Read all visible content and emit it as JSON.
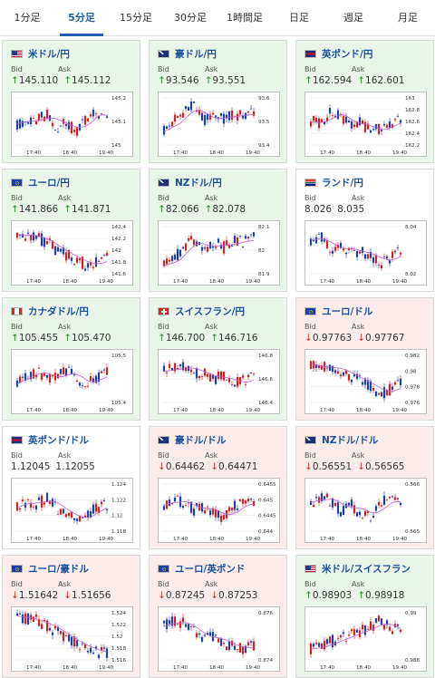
{
  "tabs": [
    "1分足",
    "5分足",
    "15分足",
    "30分足",
    "1時間足",
    "日足",
    "週足",
    "月足"
  ],
  "active_tab": 1,
  "labels": {
    "bid": "Bid",
    "ask": "Ask"
  },
  "x_ticks": [
    "17:40",
    "18:40",
    "19:40"
  ],
  "colors": {
    "up_bg": "#eaf5ea",
    "down_bg": "#fbecec",
    "flat_bg": "#ffffff",
    "up_arrow": "#2a8a2a",
    "down_arrow": "#c83232",
    "candle_up": "#d62020",
    "candle_down": "#1c3fa8",
    "ma_line": "#c060d0",
    "title": "#1a4f9c"
  },
  "cards": [
    {
      "pair": "米ドル/円",
      "flag": "us-flag-icon",
      "dir": "up",
      "bid": "145.110",
      "ask": "145.112",
      "ticks": [
        "145.2",
        "145.1",
        "145"
      ],
      "trend": [
        0.55,
        0.45,
        0.5,
        0.35,
        0.6,
        0.55,
        0.7,
        0.4,
        0.3,
        0.5
      ]
    },
    {
      "pair": "豪ドル/円",
      "flag": "au-flag-icon",
      "dir": "up",
      "bid": "93.546",
      "ask": "93.551",
      "ticks": [
        "93.6",
        "93.5",
        "93.4"
      ],
      "trend": [
        0.7,
        0.5,
        0.3,
        0.2,
        0.5,
        0.4,
        0.45,
        0.35,
        0.4,
        0.3
      ]
    },
    {
      "pair": "英ポンド/円",
      "flag": "gb-flag-icon",
      "dir": "up",
      "bid": "162.594",
      "ask": "162.601",
      "ticks": [
        "163",
        "162.8",
        "162.6",
        "162.4",
        "162.2"
      ],
      "trend": [
        0.5,
        0.55,
        0.3,
        0.4,
        0.6,
        0.5,
        0.7,
        0.65,
        0.55,
        0.45
      ]
    },
    {
      "pair": "ユーロ/円",
      "flag": "eu-flag-icon",
      "dir": "up",
      "bid": "141.866",
      "ask": "141.871",
      "ticks": [
        "142.4",
        "142.2",
        "142",
        "141.8",
        "141.6"
      ],
      "trend": [
        0.2,
        0.2,
        0.25,
        0.35,
        0.5,
        0.6,
        0.7,
        0.8,
        0.75,
        0.65
      ]
    },
    {
      "pair": "NZドル/円",
      "flag": "nz-flag-icon",
      "dir": "up",
      "bid": "82.066",
      "ask": "82.078",
      "ticks": [
        "82.1",
        "82",
        "81.9"
      ],
      "trend": [
        0.8,
        0.7,
        0.4,
        0.3,
        0.5,
        0.35,
        0.45,
        0.3,
        0.35,
        0.25
      ]
    },
    {
      "pair": "ランド/円",
      "flag": "za-flag-icon",
      "dir": "flat",
      "bid": "8.026",
      "ask": "8.035",
      "ticks": [
        "8.04",
        "8.02"
      ],
      "trend": [
        0.3,
        0.25,
        0.5,
        0.45,
        0.5,
        0.55,
        0.6,
        0.75,
        0.65,
        0.5
      ]
    },
    {
      "pair": "カナダドル/円",
      "flag": "ca-flag-icon",
      "dir": "up",
      "bid": "105.455",
      "ask": "105.470",
      "ticks": [
        "105.5",
        "105.4"
      ],
      "trend": [
        0.6,
        0.4,
        0.35,
        0.45,
        0.5,
        0.3,
        0.55,
        0.6,
        0.45,
        0.4
      ]
    },
    {
      "pair": "スイスフラン/円",
      "flag": "ch-flag-icon",
      "dir": "up",
      "bid": "146.700",
      "ask": "146.716",
      "ticks": [
        "146.8",
        "146.6",
        "146.4"
      ],
      "trend": [
        0.35,
        0.3,
        0.25,
        0.35,
        0.4,
        0.5,
        0.45,
        0.6,
        0.55,
        0.45
      ]
    },
    {
      "pair": "ユーロ/ドル",
      "flag": "eu-flag-icon",
      "dir": "down",
      "bid": "0.97763",
      "ask": "0.97767",
      "ticks": [
        "0.982",
        "0.98",
        "0.978",
        "0.976"
      ],
      "trend": [
        0.2,
        0.3,
        0.25,
        0.35,
        0.45,
        0.55,
        0.65,
        0.8,
        0.7,
        0.6
      ]
    },
    {
      "pair": "英ポンド/ドル",
      "flag": "gb-flag-icon",
      "dir": "flat",
      "bid": "1.12045",
      "ask": "1.12055",
      "ticks": [
        "1.124",
        "1.122",
        "1.12",
        "1.118"
      ],
      "trend": [
        0.5,
        0.35,
        0.45,
        0.3,
        0.55,
        0.6,
        0.75,
        0.65,
        0.5,
        0.45
      ]
    },
    {
      "pair": "豪ドル/ドル",
      "flag": "au-flag-icon",
      "dir": "down",
      "bid": "0.64462",
      "ask": "0.64471",
      "ticks": [
        "0.6455",
        "0.645",
        "0.6445",
        "0.644"
      ],
      "trend": [
        0.45,
        0.35,
        0.4,
        0.55,
        0.5,
        0.6,
        0.7,
        0.5,
        0.4,
        0.45
      ]
    },
    {
      "pair": "NZドル/ドル",
      "flag": "nz-flag-icon",
      "dir": "down",
      "bid": "0.56551",
      "ask": "0.56565",
      "ticks": [
        "0.566",
        "0.565"
      ],
      "trend": [
        0.4,
        0.3,
        0.35,
        0.55,
        0.45,
        0.6,
        0.65,
        0.4,
        0.35,
        0.45
      ]
    },
    {
      "pair": "ユーロ/豪ドル",
      "flag": "eu-flag-icon",
      "dir": "down",
      "bid": "1.51642",
      "ask": "1.51656",
      "ticks": [
        "1.524",
        "1.522",
        "1.52",
        "1.518",
        "1.516"
      ],
      "trend": [
        0.1,
        0.15,
        0.2,
        0.3,
        0.4,
        0.55,
        0.65,
        0.75,
        0.8,
        0.85
      ]
    },
    {
      "pair": "ユーロ/英ポンド",
      "flag": "eu-flag-icon",
      "dir": "down",
      "bid": "0.87245",
      "ask": "0.87253",
      "ticks": [
        "0.876",
        "0.874"
      ],
      "trend": [
        0.3,
        0.2,
        0.25,
        0.4,
        0.55,
        0.5,
        0.65,
        0.7,
        0.75,
        0.7
      ]
    },
    {
      "pair": "米ドル/スイスフラン",
      "flag": "us-flag-icon",
      "dir": "up",
      "bid": "0.98903",
      "ask": "0.98918",
      "ticks": [
        "0.99",
        "0.988"
      ],
      "trend": [
        0.75,
        0.7,
        0.6,
        0.55,
        0.45,
        0.4,
        0.3,
        0.2,
        0.35,
        0.4
      ]
    }
  ]
}
